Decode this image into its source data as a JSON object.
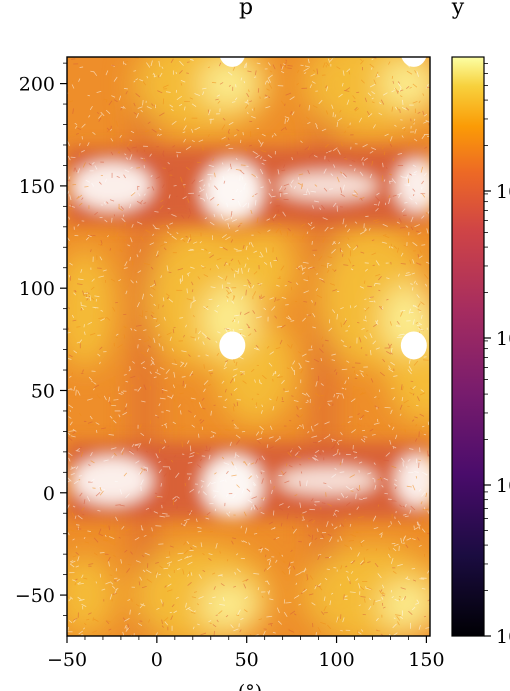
{
  "chart_data": {
    "type": "heatmap",
    "title": "p",
    "title_suffix": "y",
    "xlabel": "(°)",
    "ylabel": "",
    "xlim": [
      -50,
      152
    ],
    "ylim": [
      -70,
      213
    ],
    "xticks": [
      {
        "value": -50,
        "label": "−50"
      },
      {
        "value": 0,
        "label": "0"
      },
      {
        "value": 50,
        "label": "50"
      },
      {
        "value": 100,
        "label": "100"
      },
      {
        "value": 150,
        "label": "150"
      }
    ],
    "yticks": [
      {
        "value": -50,
        "label": "−50"
      },
      {
        "value": 0,
        "label": "0"
      },
      {
        "value": 50,
        "label": "50"
      },
      {
        "value": 100,
        "label": "100"
      },
      {
        "value": 150,
        "label": "150"
      },
      {
        "value": 200,
        "label": "200"
      }
    ],
    "periodicity": {
      "x": 180,
      "y": 144
    },
    "regions": [
      {
        "kind": "high-density-peak",
        "x": 42,
        "y": 72,
        "note": "white saturated spot"
      },
      {
        "kind": "high-density-peak",
        "x": 143,
        "y": 72,
        "note": "white saturated spot"
      },
      {
        "kind": "high-density-peak",
        "x": 42,
        "y": 215,
        "note": "white saturated spot"
      },
      {
        "kind": "high-density-peak",
        "x": 143,
        "y": 215,
        "note": "white saturated spot"
      },
      {
        "kind": "low-density-band",
        "x": 42,
        "y": 150,
        "note": "white sparse band"
      },
      {
        "kind": "low-density-band",
        "x": 42,
        "y": 6,
        "note": "white sparse band"
      }
    ],
    "colorbar": {
      "colormap": "inferno",
      "scale": "log",
      "tick_labels": [
        "10",
        "10",
        "10",
        "10"
      ]
    },
    "colors": {
      "bright": "#fcf7a4",
      "yellow": "#f6c33a",
      "orange": "#ef8c1a",
      "red": "#d55a3a",
      "magenta": "#9c2c6a",
      "purple": "#4c0d6b",
      "black": "#000004"
    }
  }
}
